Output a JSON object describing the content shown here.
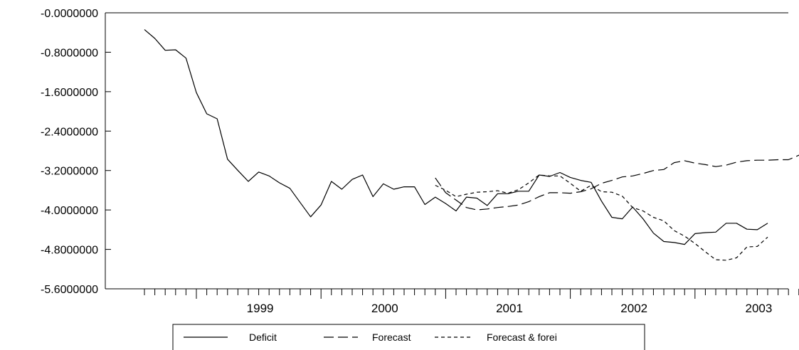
{
  "chart_data": {
    "type": "line",
    "title": "",
    "xlabel": "",
    "ylabel": "",
    "x_tick_labels": [
      "1999",
      "2000",
      "2001",
      "2002",
      "2003"
    ],
    "y_tick_labels": [
      "-0.0000000",
      "-0.8000000",
      "-1.6000000",
      "-2.4000000",
      "-3.2000000",
      "-4.0000000",
      "-4.8000000",
      "-5.6000000"
    ],
    "y_ticks": [
      0,
      -0.8,
      -1.6,
      -2.4,
      -3.2,
      -4.0,
      -4.8,
      -5.6
    ],
    "ylim": [
      -5.6,
      0
    ],
    "x_periods": "monthly, 1998M08 to 2003M12",
    "grid": false,
    "legend_position": "bottom",
    "series": [
      {
        "name": "Deficit",
        "line_style": "solid",
        "start": "1998-08",
        "values": [
          -0.34,
          -0.52,
          -0.76,
          -0.75,
          -0.92,
          -1.62,
          -2.05,
          -2.15,
          -2.97,
          -3.2,
          -3.42,
          -3.23,
          -3.31,
          -3.45,
          -3.56,
          -3.85,
          -4.14,
          -3.9,
          -3.42,
          -3.58,
          -3.38,
          -3.29,
          -3.73,
          -3.47,
          -3.58,
          -3.53,
          -3.53,
          -3.89,
          -3.74,
          -3.87,
          -4.02,
          -3.74,
          -3.76,
          -3.91,
          -3.67,
          -3.67,
          -3.62,
          -3.62,
          -3.29,
          -3.32,
          -3.24,
          -3.34,
          -3.4,
          -3.44,
          -3.82,
          -4.15,
          -4.18,
          -3.94,
          -4.18,
          -4.47,
          -4.64,
          -4.66,
          -4.7,
          -4.48,
          -4.46,
          -4.45,
          -4.27,
          -4.27,
          -4.39,
          -4.4,
          -4.27
        ]
      },
      {
        "name": "Forecast",
        "line_style": "long-dash",
        "start": "2000-12",
        "values": [
          -3.35,
          -3.65,
          -3.8,
          -3.95,
          -4.0,
          -3.98,
          -3.95,
          -3.93,
          -3.9,
          -3.83,
          -3.73,
          -3.65,
          -3.65,
          -3.66,
          -3.63,
          -3.57,
          -3.46,
          -3.4,
          -3.33,
          -3.31,
          -3.26,
          -3.2,
          -3.18,
          -3.04,
          -3.0,
          -3.05,
          -3.08,
          -3.12,
          -3.09,
          -3.03,
          -3.0,
          -2.99,
          -2.99,
          -2.98,
          -2.98,
          -2.89,
          -2.9
        ]
      },
      {
        "name": "Forecast & forei",
        "line_style": "short-dash",
        "start": "2000-12",
        "values": [
          -3.5,
          -3.6,
          -3.73,
          -3.68,
          -3.64,
          -3.63,
          -3.61,
          -3.66,
          -3.59,
          -3.45,
          -3.29,
          -3.31,
          -3.31,
          -3.46,
          -3.62,
          -3.5,
          -3.63,
          -3.64,
          -3.72,
          -3.95,
          -4.02,
          -4.15,
          -4.22,
          -4.42,
          -4.53,
          -4.68,
          -4.85,
          -5.01,
          -5.02,
          -4.97,
          -4.75,
          -4.74,
          -4.55
        ]
      }
    ]
  }
}
